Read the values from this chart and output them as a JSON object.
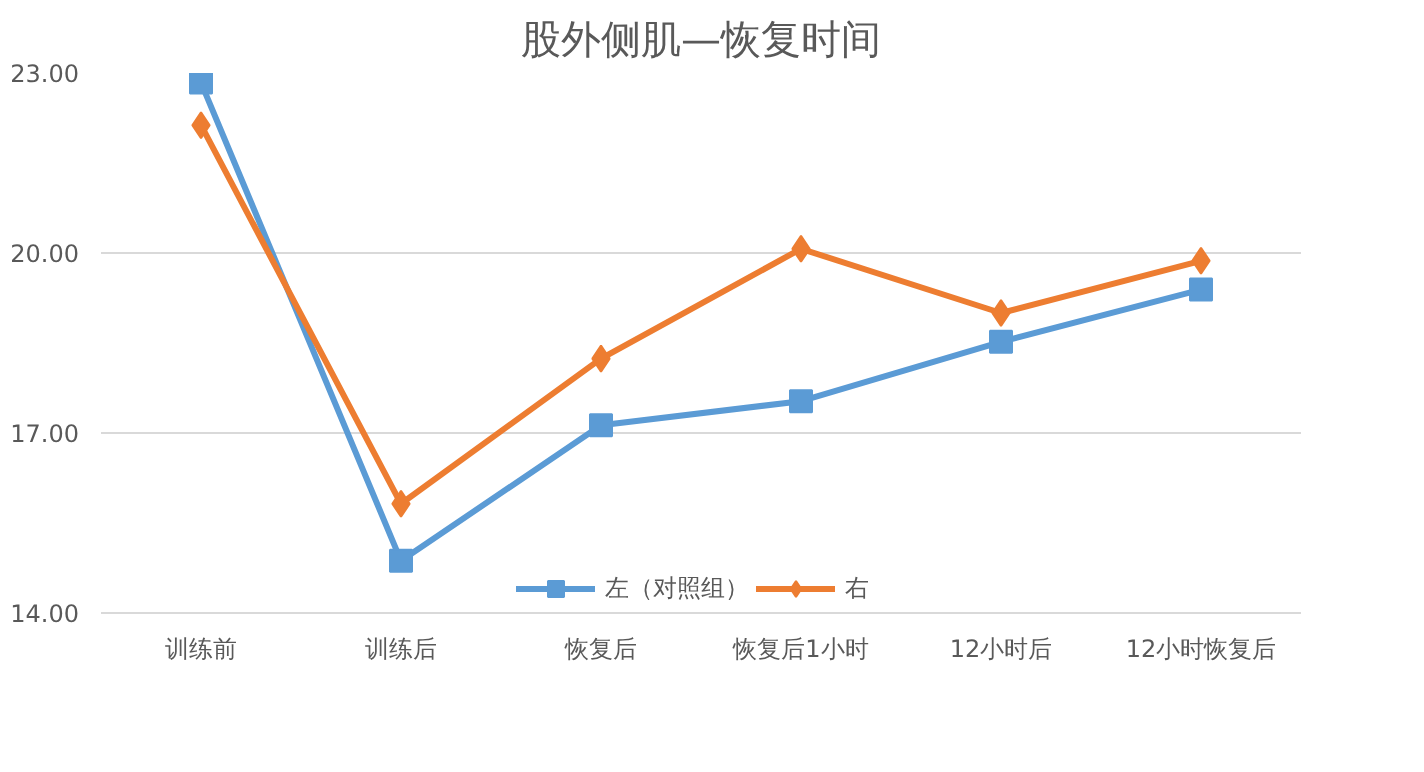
{
  "chart_data": {
    "type": "line",
    "title": "股外侧肌—恢复时间",
    "categories": [
      "训练前",
      "训练后",
      "恢复后",
      "恢复后1小时",
      "12小时后",
      "12小时恢复后"
    ],
    "series": [
      {
        "name": "左（对照组）",
        "color": "#5b9bd5",
        "marker": "square",
        "values": [
          22.84,
          14.87,
          17.13,
          17.53,
          18.52,
          19.39
        ]
      },
      {
        "name": "右",
        "color": "#ed7d31",
        "marker": "diamond",
        "values": [
          22.13,
          15.82,
          18.24,
          20.07,
          19.0,
          19.87
        ]
      }
    ],
    "ylim": [
      14,
      23
    ],
    "yticks": [
      {
        "value": 14,
        "label": "14.00"
      },
      {
        "value": 17,
        "label": "17.00"
      },
      {
        "value": 20,
        "label": "20.00"
      },
      {
        "value": 23,
        "label": "23.00"
      }
    ],
    "grid": "y",
    "legend": "bottom"
  }
}
